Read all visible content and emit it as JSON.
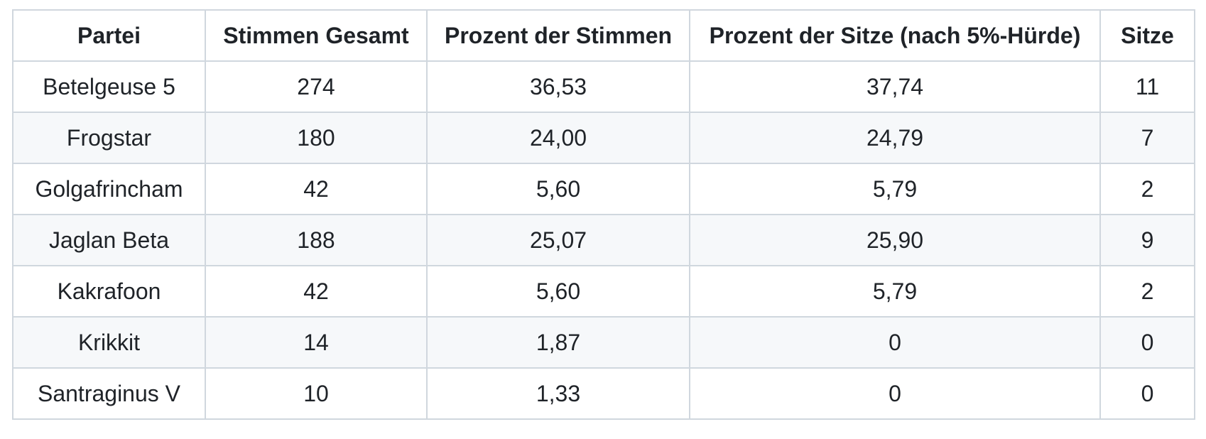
{
  "table": {
    "columns": [
      {
        "key": "partei",
        "label": "Partei"
      },
      {
        "key": "stimmen-gesamt",
        "label": "Stimmen Gesamt"
      },
      {
        "key": "prozent-stimmen",
        "label": "Prozent der Stimmen"
      },
      {
        "key": "prozent-sitze",
        "label": "Prozent der Sitze (nach 5%-Hürde)"
      },
      {
        "key": "sitze",
        "label": "Sitze"
      }
    ],
    "rows": [
      {
        "partei": "Betelgeuse 5",
        "stimmen-gesamt": "274",
        "prozent-stimmen": "36,53",
        "prozent-sitze": "37,74",
        "sitze": "11"
      },
      {
        "partei": "Frogstar",
        "stimmen-gesamt": "180",
        "prozent-stimmen": "24,00",
        "prozent-sitze": "24,79",
        "sitze": "7"
      },
      {
        "partei": "Golgafrincham",
        "stimmen-gesamt": "42",
        "prozent-stimmen": "5,60",
        "prozent-sitze": "5,79",
        "sitze": "2"
      },
      {
        "partei": "Jaglan Beta",
        "stimmen-gesamt": "188",
        "prozent-stimmen": "25,07",
        "prozent-sitze": "25,90",
        "sitze": "9"
      },
      {
        "partei": "Kakrafoon",
        "stimmen-gesamt": "42",
        "prozent-stimmen": "5,60",
        "prozent-sitze": "5,79",
        "sitze": "2"
      },
      {
        "partei": "Krikkit",
        "stimmen-gesamt": "14",
        "prozent-stimmen": "1,87",
        "prozent-sitze": "0",
        "sitze": "0"
      },
      {
        "partei": "Santraginus V",
        "stimmen-gesamt": "10",
        "prozent-stimmen": "1,33",
        "prozent-sitze": "0",
        "sitze": "0"
      }
    ]
  },
  "colors": {
    "background": "#ffffff",
    "row_stripe": "#f6f8fa",
    "border": "#d0d7de",
    "text": "#1f2328"
  }
}
